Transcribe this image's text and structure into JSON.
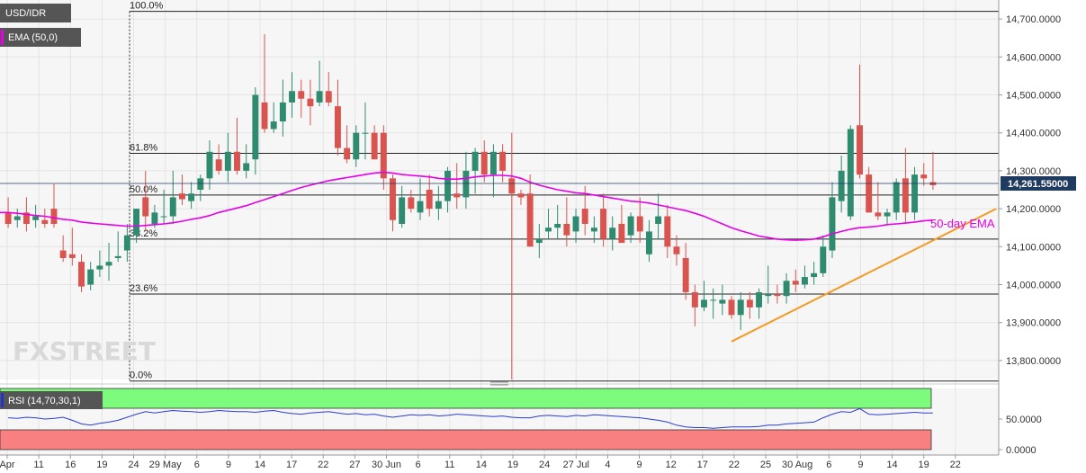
{
  "chart_data": {
    "type": "candlestick",
    "instrument": "USD/IDR",
    "indicator_label": "EMA (50,0)",
    "rsi_label": "RSI (14,70,30,1)",
    "last_price": "14,261.55000",
    "ema_annotation": "50-day EMA",
    "watermark": "FXSTREET",
    "y_axis": {
      "min": 13750,
      "max": 14750,
      "ticks": [
        "14,700.0000",
        "14,600.0000",
        "14,500.0000",
        "14,400.0000",
        "14,300.0000",
        "14,200.0000",
        "14,100.0000",
        "14,000.0000",
        "13,900.0000",
        "13,800.0000"
      ]
    },
    "rsi_axis": {
      "ticks": [
        "50.0000",
        "0.0000"
      ],
      "overbought": 70,
      "oversold": 30
    },
    "x_labels": [
      "Apr",
      "11",
      "16",
      "19",
      "24",
      "29 May",
      "6",
      "9",
      "14",
      "17",
      "22",
      "27",
      "30 Jun",
      "6",
      "11",
      "14",
      "19",
      "24",
      "27 Jul",
      "4",
      "9",
      "12",
      "17",
      "22",
      "25",
      "30 Aug",
      "6",
      "9",
      "14",
      "19",
      "22"
    ],
    "fibonacci": [
      {
        "label": "100.0%",
        "value": 14720
      },
      {
        "label": "61.8%",
        "value": 14346
      },
      {
        "label": "50.0%",
        "value": 14236
      },
      {
        "label": "38.2%",
        "value": 14120
      },
      {
        "label": "23.6%",
        "value": 13975
      },
      {
        "label": "0.0%",
        "value": 13746
      }
    ],
    "candles": [
      {
        "o": 14190,
        "h": 14230,
        "l": 14150,
        "c": 14160
      },
      {
        "o": 14170,
        "h": 14200,
        "l": 14150,
        "c": 14180
      },
      {
        "o": 14190,
        "h": 14230,
        "l": 14140,
        "c": 14160
      },
      {
        "o": 14170,
        "h": 14210,
        "l": 14150,
        "c": 14180
      },
      {
        "o": 14170,
        "h": 14200,
        "l": 14150,
        "c": 14160
      },
      {
        "o": 14200,
        "h": 14265,
        "l": 14150,
        "c": 14160
      },
      {
        "o": 14090,
        "h": 14130,
        "l": 14060,
        "c": 14070
      },
      {
        "o": 14080,
        "h": 14150,
        "l": 14050,
        "c": 14070
      },
      {
        "o": 14060,
        "h": 14080,
        "l": 13980,
        "c": 13995
      },
      {
        "o": 14000,
        "h": 14060,
        "l": 13985,
        "c": 14040
      },
      {
        "o": 14040,
        "h": 14090,
        "l": 14020,
        "c": 14050
      },
      {
        "o": 14050,
        "h": 14110,
        "l": 14010,
        "c": 14060
      },
      {
        "o": 14070,
        "h": 14140,
        "l": 14060,
        "c": 14075
      },
      {
        "o": 14090,
        "h": 14160,
        "l": 14060,
        "c": 14130
      },
      {
        "o": 14130,
        "h": 14200,
        "l": 14110,
        "c": 14200
      },
      {
        "o": 14230,
        "h": 14300,
        "l": 14140,
        "c": 14180
      },
      {
        "o": 14160,
        "h": 14210,
        "l": 14150,
        "c": 14190
      },
      {
        "o": 14180,
        "h": 14250,
        "l": 14160,
        "c": 14180
      },
      {
        "o": 14180,
        "h": 14300,
        "l": 14160,
        "c": 14230
      },
      {
        "o": 14240,
        "h": 14290,
        "l": 14210,
        "c": 14225
      },
      {
        "o": 14220,
        "h": 14270,
        "l": 14200,
        "c": 14240
      },
      {
        "o": 14250,
        "h": 14290,
        "l": 14220,
        "c": 14280
      },
      {
        "o": 14280,
        "h": 14380,
        "l": 14250,
        "c": 14350
      },
      {
        "o": 14330,
        "h": 14370,
        "l": 14290,
        "c": 14300
      },
      {
        "o": 14300,
        "h": 14400,
        "l": 14270,
        "c": 14350
      },
      {
        "o": 14350,
        "h": 14440,
        "l": 14290,
        "c": 14300
      },
      {
        "o": 14300,
        "h": 14370,
        "l": 14280,
        "c": 14320
      },
      {
        "o": 14330,
        "h": 14520,
        "l": 14290,
        "c": 14500
      },
      {
        "o": 14480,
        "h": 14660,
        "l": 14400,
        "c": 14410
      },
      {
        "o": 14410,
        "h": 14480,
        "l": 14400,
        "c": 14430
      },
      {
        "o": 14430,
        "h": 14540,
        "l": 14390,
        "c": 14480
      },
      {
        "o": 14480,
        "h": 14560,
        "l": 14440,
        "c": 14510
      },
      {
        "o": 14510,
        "h": 14540,
        "l": 14440,
        "c": 14490
      },
      {
        "o": 14490,
        "h": 14540,
        "l": 14420,
        "c": 14470
      },
      {
        "o": 14480,
        "h": 14590,
        "l": 14470,
        "c": 14510
      },
      {
        "o": 14510,
        "h": 14560,
        "l": 14470,
        "c": 14480
      },
      {
        "o": 14470,
        "h": 14540,
        "l": 14340,
        "c": 14360
      },
      {
        "o": 14360,
        "h": 14420,
        "l": 14320,
        "c": 14330
      },
      {
        "o": 14330,
        "h": 14420,
        "l": 14310,
        "c": 14400
      },
      {
        "o": 14400,
        "h": 14480,
        "l": 14330,
        "c": 14400
      },
      {
        "o": 14400,
        "h": 14420,
        "l": 14330,
        "c": 14330
      },
      {
        "o": 14400,
        "h": 14420,
        "l": 14250,
        "c": 14280
      },
      {
        "o": 14280,
        "h": 14290,
        "l": 14140,
        "c": 14170
      },
      {
        "o": 14160,
        "h": 14260,
        "l": 14150,
        "c": 14230
      },
      {
        "o": 14230,
        "h": 14250,
        "l": 14190,
        "c": 14200
      },
      {
        "o": 14190,
        "h": 14280,
        "l": 14170,
        "c": 14220
      },
      {
        "o": 14250,
        "h": 14290,
        "l": 14180,
        "c": 14200
      },
      {
        "o": 14200,
        "h": 14260,
        "l": 14170,
        "c": 14220
      },
      {
        "o": 14220,
        "h": 14310,
        "l": 14190,
        "c": 14300
      },
      {
        "o": 14240,
        "h": 14320,
        "l": 14200,
        "c": 14230
      },
      {
        "o": 14230,
        "h": 14350,
        "l": 14200,
        "c": 14300
      },
      {
        "o": 14300,
        "h": 14360,
        "l": 14240,
        "c": 14350
      },
      {
        "o": 14350,
        "h": 14380,
        "l": 14270,
        "c": 14290
      },
      {
        "o": 14290,
        "h": 14370,
        "l": 14230,
        "c": 14350
      },
      {
        "o": 14350,
        "h": 14370,
        "l": 14270,
        "c": 14300
      },
      {
        "o": 14280,
        "h": 14400,
        "l": 13750,
        "c": 14240
      },
      {
        "o": 14240,
        "h": 14250,
        "l": 14210,
        "c": 14230
      },
      {
        "o": 14240,
        "h": 14290,
        "l": 14110,
        "c": 14100
      },
      {
        "o": 14110,
        "h": 14160,
        "l": 14070,
        "c": 14120
      },
      {
        "o": 14140,
        "h": 14200,
        "l": 14120,
        "c": 14150
      },
      {
        "o": 14150,
        "h": 14210,
        "l": 14120,
        "c": 14160
      },
      {
        "o": 14160,
        "h": 14230,
        "l": 14100,
        "c": 14130
      },
      {
        "o": 14140,
        "h": 14200,
        "l": 14110,
        "c": 14180
      },
      {
        "o": 14200,
        "h": 14260,
        "l": 14130,
        "c": 14160
      },
      {
        "o": 14140,
        "h": 14180,
        "l": 14110,
        "c": 14150
      },
      {
        "o": 14200,
        "h": 14240,
        "l": 14100,
        "c": 14120
      },
      {
        "o": 14120,
        "h": 14180,
        "l": 14090,
        "c": 14150
      },
      {
        "o": 14160,
        "h": 14210,
        "l": 14110,
        "c": 14110
      },
      {
        "o": 14130,
        "h": 14190,
        "l": 14110,
        "c": 14180
      },
      {
        "o": 14180,
        "h": 14230,
        "l": 14110,
        "c": 14140
      },
      {
        "o": 14080,
        "h": 14170,
        "l": 14060,
        "c": 14140
      },
      {
        "o": 14160,
        "h": 14240,
        "l": 14120,
        "c": 14180
      },
      {
        "o": 14180,
        "h": 14210,
        "l": 14070,
        "c": 14100
      },
      {
        "o": 14100,
        "h": 14130,
        "l": 14050,
        "c": 14080
      },
      {
        "o": 14070,
        "h": 14110,
        "l": 13960,
        "c": 13980
      },
      {
        "o": 13980,
        "h": 14000,
        "l": 13890,
        "c": 13940
      },
      {
        "o": 13940,
        "h": 14010,
        "l": 13930,
        "c": 13960
      },
      {
        "o": 13960,
        "h": 13990,
        "l": 13910,
        "c": 13960
      },
      {
        "o": 13950,
        "h": 14000,
        "l": 13920,
        "c": 13960
      },
      {
        "o": 13960,
        "h": 13970,
        "l": 13910,
        "c": 13920
      },
      {
        "o": 13920,
        "h": 13980,
        "l": 13880,
        "c": 13960
      },
      {
        "o": 13960,
        "h": 13980,
        "l": 13910,
        "c": 13940
      },
      {
        "o": 13940,
        "h": 13990,
        "l": 13910,
        "c": 13980
      },
      {
        "o": 13970,
        "h": 14050,
        "l": 13950,
        "c": 13975
      },
      {
        "o": 13975,
        "h": 14000,
        "l": 13950,
        "c": 13970
      },
      {
        "o": 13970,
        "h": 14030,
        "l": 13950,
        "c": 14010
      },
      {
        "o": 14010,
        "h": 14040,
        "l": 13980,
        "c": 14000
      },
      {
        "o": 14000,
        "h": 14050,
        "l": 13990,
        "c": 14020
      },
      {
        "o": 14020,
        "h": 14060,
        "l": 14000,
        "c": 14030
      },
      {
        "o": 14030,
        "h": 14130,
        "l": 14020,
        "c": 14100
      },
      {
        "o": 14090,
        "h": 14270,
        "l": 14070,
        "c": 14230
      },
      {
        "o": 14220,
        "h": 14340,
        "l": 14190,
        "c": 14300
      },
      {
        "o": 14180,
        "h": 14420,
        "l": 14170,
        "c": 14410
      },
      {
        "o": 14420,
        "h": 14580,
        "l": 14280,
        "c": 14290
      },
      {
        "o": 14290,
        "h": 14310,
        "l": 14190,
        "c": 14190
      },
      {
        "o": 14190,
        "h": 14270,
        "l": 14170,
        "c": 14180
      },
      {
        "o": 14180,
        "h": 14200,
        "l": 14160,
        "c": 14190
      },
      {
        "o": 14190,
        "h": 14280,
        "l": 14170,
        "c": 14270
      },
      {
        "o": 14280,
        "h": 14360,
        "l": 14160,
        "c": 14190
      },
      {
        "o": 14190,
        "h": 14310,
        "l": 14170,
        "c": 14290
      },
      {
        "o": 14290,
        "h": 14320,
        "l": 14260,
        "c": 14280
      },
      {
        "o": 14270,
        "h": 14350,
        "l": 14250,
        "c": 14262
      }
    ],
    "ema": [
      14190,
      14188,
      14185,
      14182,
      14180,
      14176,
      14172,
      14170,
      14165,
      14162,
      14160,
      14158,
      14156,
      14154,
      14154,
      14156,
      14158,
      14160,
      14163,
      14167,
      14172,
      14176,
      14182,
      14190,
      14196,
      14202,
      14208,
      14216,
      14224,
      14232,
      14240,
      14248,
      14256,
      14262,
      14268,
      14274,
      14278,
      14282,
      14286,
      14290,
      14294,
      14296,
      14294,
      14290,
      14288,
      14286,
      14284,
      14280,
      14278,
      14278,
      14280,
      14284,
      14286,
      14288,
      14288,
      14286,
      14280,
      14270,
      14262,
      14256,
      14250,
      14246,
      14242,
      14240,
      14236,
      14232,
      14228,
      14224,
      14220,
      14218,
      14215,
      14210,
      14205,
      14200,
      14195,
      14188,
      14180,
      14170,
      14160,
      14150,
      14142,
      14135,
      14128,
      14124,
      14120,
      14118,
      14117,
      14118,
      14120,
      14126,
      14134,
      14140,
      14146,
      14150,
      14152,
      14154,
      14158,
      14160,
      14162,
      14165,
      14168,
      14170
    ],
    "rsi": [
      52,
      51,
      53,
      52,
      50,
      51,
      53,
      48,
      42,
      40,
      43,
      45,
      48,
      53,
      58,
      62,
      60,
      62,
      64,
      63,
      62,
      61,
      62,
      64,
      63,
      62,
      62,
      61,
      63,
      64,
      61,
      59,
      58,
      60,
      61,
      62,
      60,
      58,
      59,
      57,
      58,
      55,
      53,
      55,
      57,
      56,
      57,
      55,
      56,
      58,
      57,
      56,
      55,
      54,
      55,
      53,
      52,
      52,
      55,
      56,
      55,
      54,
      56,
      55,
      57,
      56,
      55,
      54,
      53,
      52,
      50,
      48,
      45,
      40,
      37,
      36,
      36,
      35,
      36,
      37,
      37,
      37,
      38,
      40,
      40,
      42,
      43,
      44,
      45,
      52,
      58,
      62,
      61,
      67,
      58,
      57,
      58,
      59,
      60,
      61,
      60,
      60
    ],
    "trendline": {
      "from": {
        "i": 79,
        "v": 13850
      },
      "to": {
        "i": 103,
        "v": 14200
      }
    }
  }
}
